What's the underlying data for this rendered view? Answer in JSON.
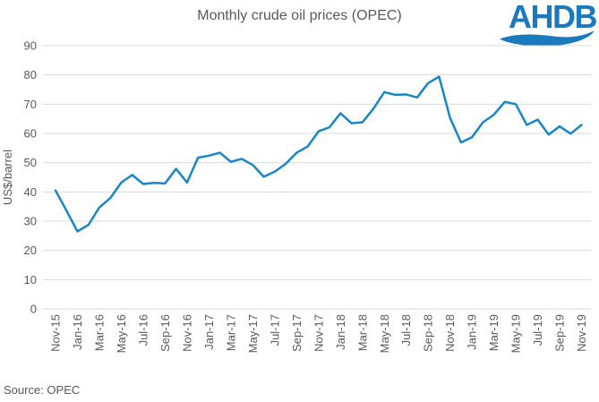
{
  "source": "Source: OPEC",
  "logo": {
    "text": "AHDB"
  },
  "colors": {
    "line": "#1787c9",
    "grid": "#d9d9d9",
    "text": "#595959",
    "logo_blue": "#1b79be",
    "background": "#ffffff"
  },
  "chart_data": {
    "type": "line",
    "title": "Monthly crude oil prices (OPEC)",
    "xlabel": "",
    "ylabel": "US$/barrel",
    "ylim": [
      0,
      90
    ],
    "ytick_step": 10,
    "yticks": [
      0,
      10,
      20,
      30,
      40,
      50,
      60,
      70,
      80,
      90
    ],
    "grid": "horizontal",
    "legend_position": "none",
    "xtick_labels_shown_every": 2,
    "xticks": [
      "Nov-15",
      "Jan-16",
      "Mar-16",
      "May-16",
      "Jul-16",
      "Sep-16",
      "Nov-16",
      "Jan-17",
      "Mar-17",
      "May-17",
      "Jul-17",
      "Sep-17",
      "Nov-17",
      "Jan-18",
      "Mar-18",
      "May-18",
      "Jul-18",
      "Sep-18",
      "Nov-18",
      "Jan-19",
      "Mar-19",
      "May-19",
      "Jul-19",
      "Sep-19",
      "Nov-19"
    ],
    "x": [
      "Nov-15",
      "Dec-15",
      "Jan-16",
      "Feb-16",
      "Mar-16",
      "Apr-16",
      "May-16",
      "Jun-16",
      "Jul-16",
      "Aug-16",
      "Sep-16",
      "Oct-16",
      "Nov-16",
      "Dec-16",
      "Jan-17",
      "Feb-17",
      "Mar-17",
      "Apr-17",
      "May-17",
      "Jun-17",
      "Jul-17",
      "Aug-17",
      "Sep-17",
      "Oct-17",
      "Nov-17",
      "Dec-17",
      "Jan-18",
      "Feb-18",
      "Mar-18",
      "Apr-18",
      "May-18",
      "Jun-18",
      "Jul-18",
      "Aug-18",
      "Sep-18",
      "Oct-18",
      "Nov-18",
      "Dec-18",
      "Jan-19",
      "Feb-19",
      "Mar-19",
      "Apr-19",
      "May-19",
      "Jun-19",
      "Jul-19",
      "Aug-19",
      "Sep-19",
      "Oct-19",
      "Nov-19"
    ],
    "series": [
      {
        "name": "OPEC monthly crude oil price",
        "values": [
          40.5,
          33.6,
          26.5,
          28.7,
          34.7,
          37.9,
          43.2,
          45.8,
          42.7,
          43.1,
          42.9,
          47.9,
          43.2,
          51.7,
          52.4,
          53.4,
          50.3,
          51.3,
          49.2,
          45.2,
          46.9,
          49.6,
          53.4,
          55.5,
          60.7,
          62.1,
          66.9,
          63.5,
          63.8,
          68.4,
          74.1,
          73.2,
          73.3,
          72.3,
          77.2,
          79.4,
          65.3,
          56.9,
          58.7,
          63.8,
          66.4,
          70.8,
          70.0,
          62.9,
          64.7,
          59.6,
          62.4,
          59.9,
          62.9
        ]
      }
    ]
  }
}
